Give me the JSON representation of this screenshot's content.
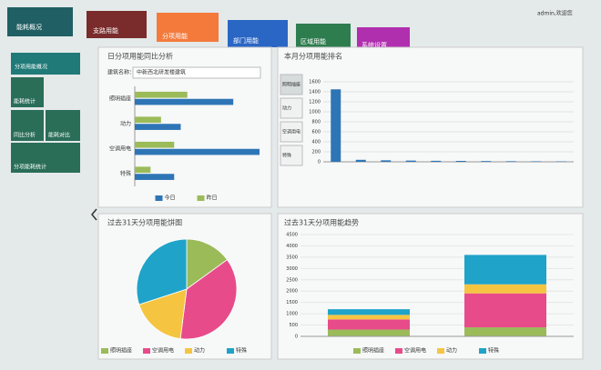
{
  "nav": [
    "能耗概况",
    "支路用能",
    "分项用能",
    "部门用能",
    "区域用能",
    "系统设置"
  ],
  "user": "admin,欢迎您",
  "sidebar": [
    "分项用能概况",
    "能耗统计",
    "同比分析",
    "能耗对比",
    "分项能耗统计"
  ],
  "selector": {
    "label": "建筑名称：",
    "value": "中新西北研发楼建筑"
  },
  "ranking_tabs": [
    "照明插座",
    "动力",
    "空调用电",
    "特殊"
  ],
  "chart_data": [
    {
      "type": "hbar",
      "title": "日分项用能同比分析",
      "categories": [
        "照明插座",
        "动力",
        "空调用电",
        "特殊"
      ],
      "series": [
        {
          "name": "今日",
          "color": "#2e75b6",
          "values": [
            75,
            35,
            95,
            30
          ]
        },
        {
          "name": "昨日",
          "color": "#9bbb59",
          "values": [
            40,
            20,
            30,
            12
          ]
        }
      ]
    },
    {
      "type": "bar",
      "title": "本月分项用能排名",
      "categories": [
        null,
        null,
        null,
        null,
        null,
        null,
        null,
        null,
        null,
        null
      ],
      "values": [
        1450,
        40,
        30,
        25,
        20,
        18,
        15,
        12,
        10,
        8
      ],
      "color": "#2e75b6",
      "ylim": [
        0,
        1600
      ],
      "yticks": [
        0,
        200,
        400,
        600,
        800,
        1000,
        1200,
        1400,
        1600
      ]
    },
    {
      "type": "pie",
      "title": "过去31天分项用能饼图",
      "categories": [
        "照明插座",
        "空调用电",
        "动力",
        "特殊"
      ],
      "values": [
        15,
        37,
        18,
        30
      ],
      "colors": [
        "#9bbb59",
        "#e84b8a",
        "#f5c542",
        "#1fa3c9"
      ]
    },
    {
      "type": "stacked-bar",
      "title": "过去31天分项用能趋势",
      "categories": [
        null,
        null
      ],
      "series": [
        {
          "name": "照明插座",
          "color": "#9bbb59",
          "values": [
            300,
            400
          ]
        },
        {
          "name": "空调用电",
          "color": "#e84b8a",
          "values": [
            450,
            1500
          ]
        },
        {
          "name": "动力",
          "color": "#f5c542",
          "values": [
            200,
            400
          ]
        },
        {
          "name": "特殊",
          "color": "#1fa3c9",
          "values": [
            250,
            1300
          ]
        }
      ],
      "ylim": [
        0,
        4500
      ],
      "yticks": [
        0,
        500,
        1000,
        1500,
        2000,
        2500,
        3000,
        3500,
        4000,
        4500
      ]
    }
  ]
}
